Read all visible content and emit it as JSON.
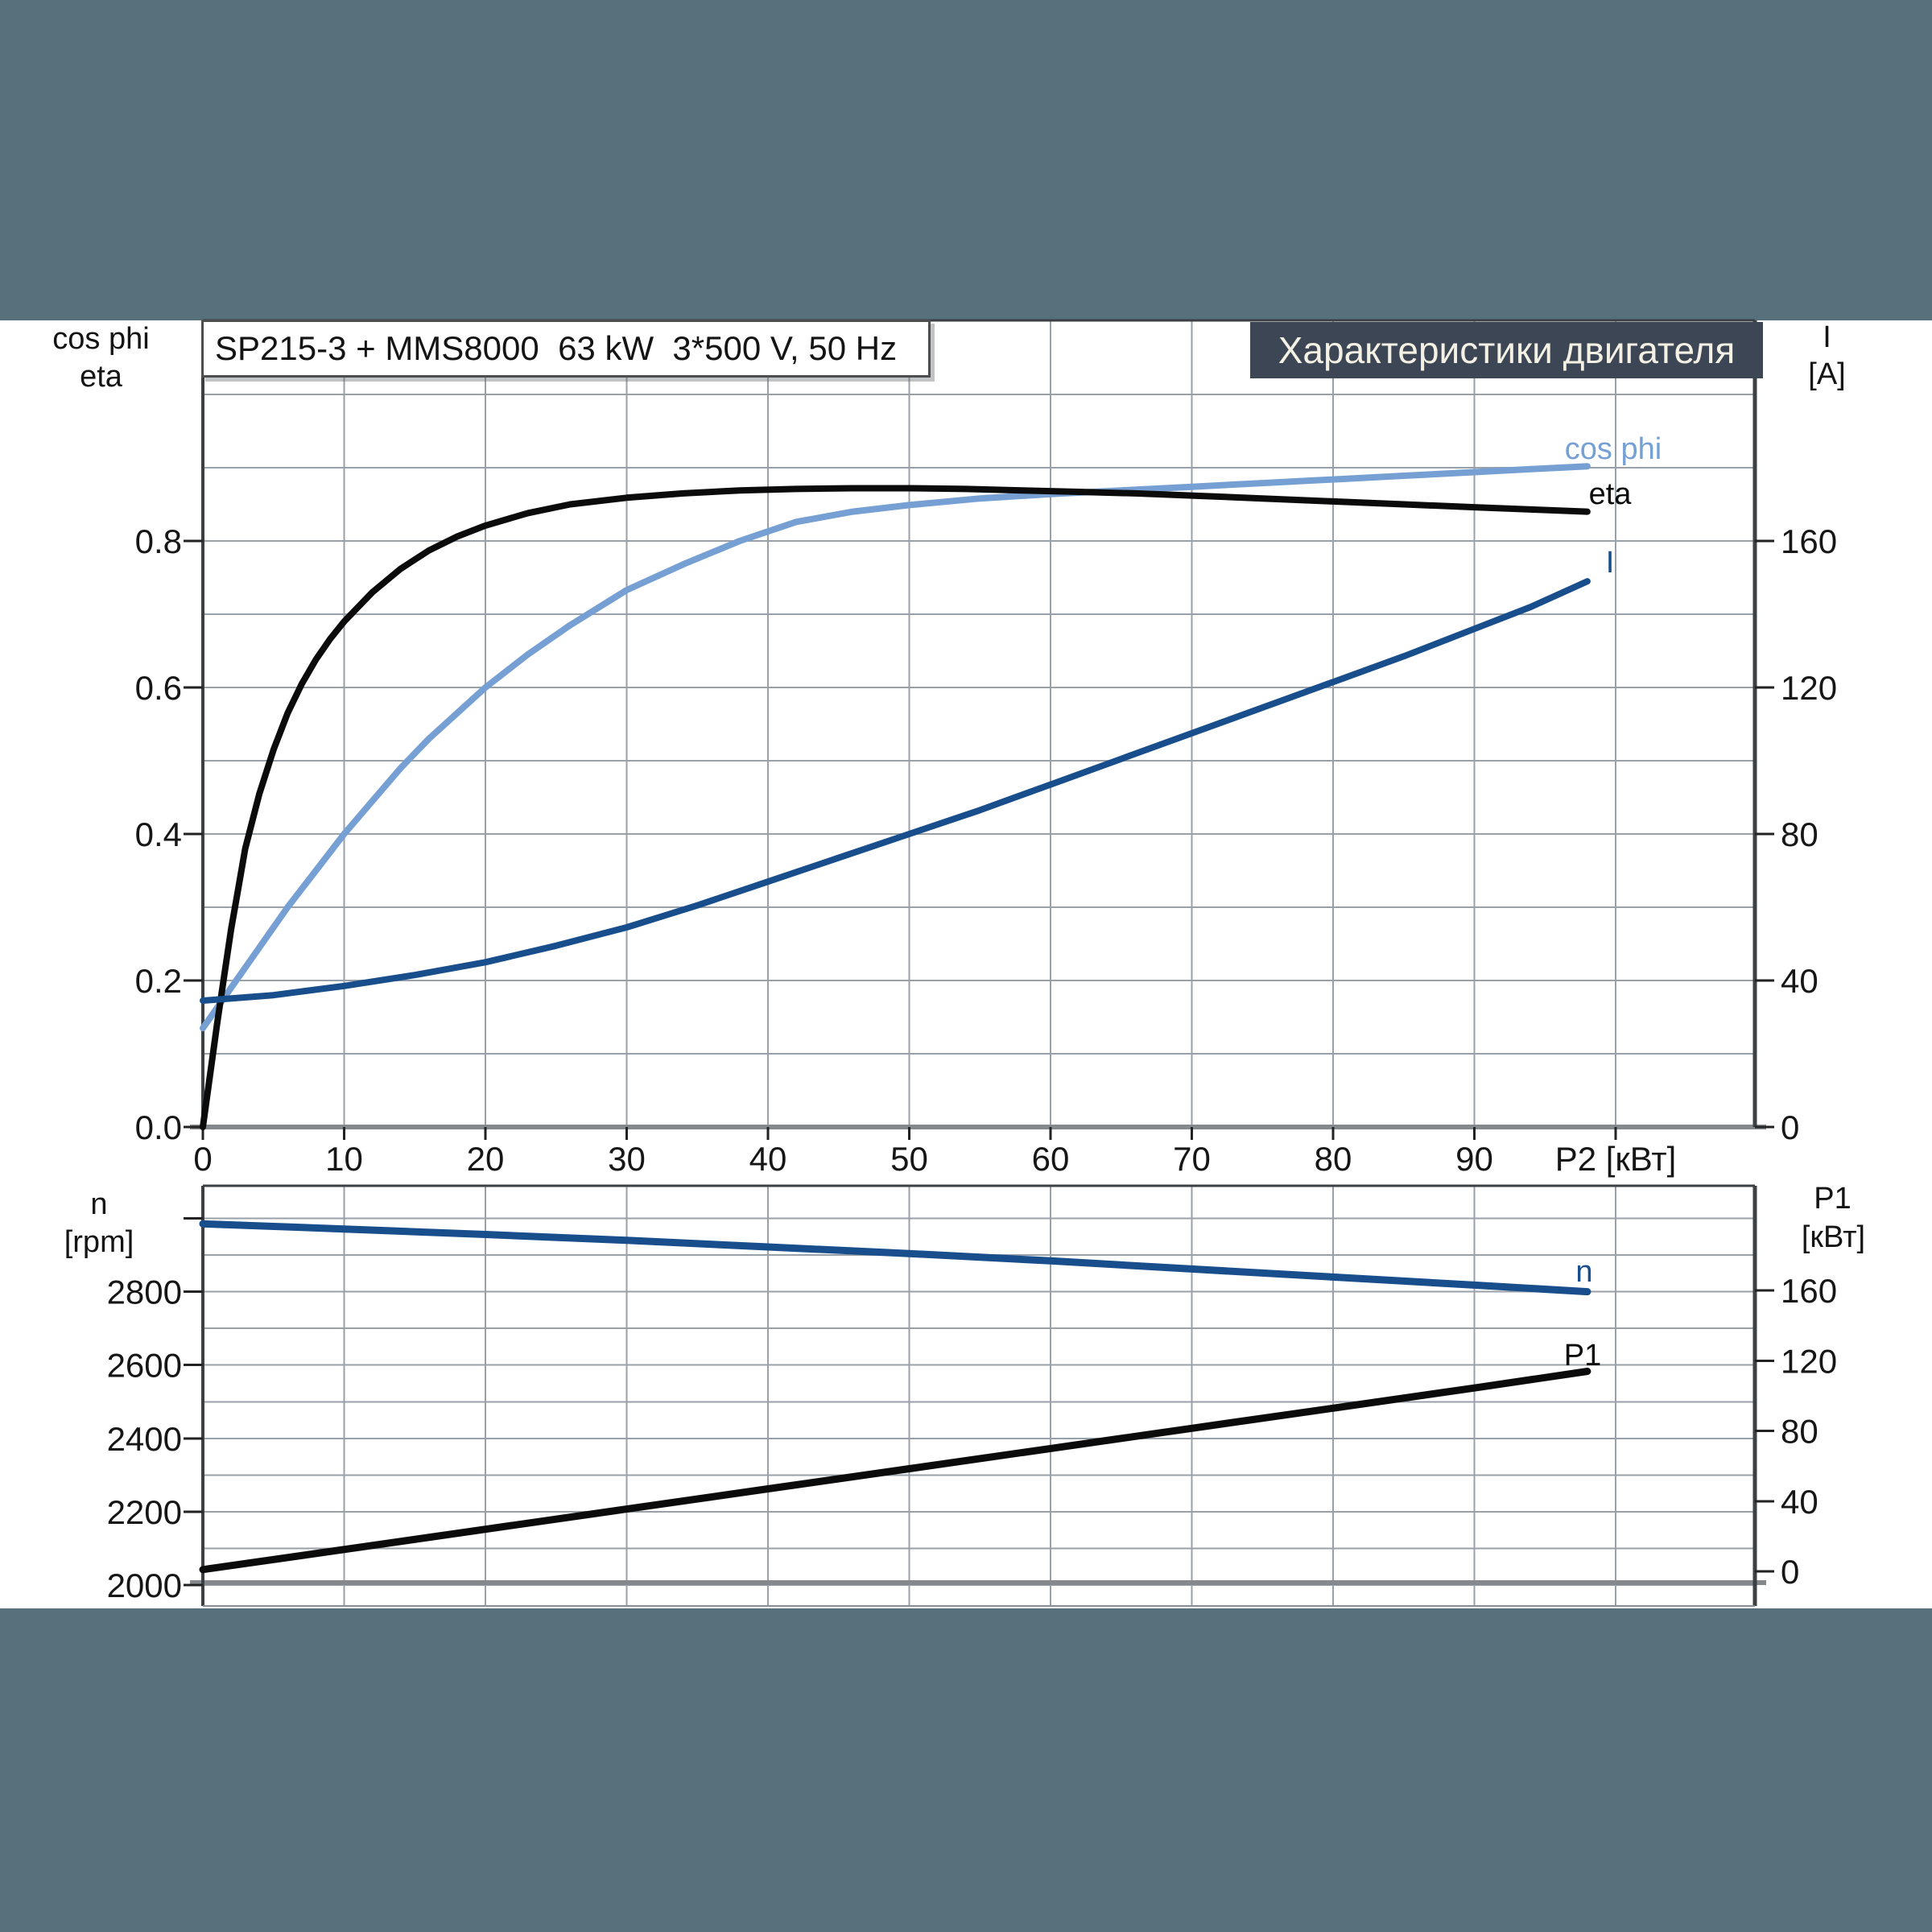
{
  "page": {
    "background": "#56707C",
    "panel_bg": "#FFFFFF"
  },
  "header": {
    "text": "Характеристики двигателя",
    "bg": "#3C4654",
    "color": "#F4F1E4"
  },
  "title_box": {
    "text": "SP215-3 + MMS8000  63 kW  3*500 V, 50 Hz"
  },
  "axis_corner_labels": {
    "top_left_1": "cos phi",
    "top_left_2": "eta",
    "top_right_1": "I",
    "top_right_2": "[A]",
    "bottom_left_1": "n",
    "bottom_left_2": "[rpm]",
    "bottom_right_1": "P1",
    "bottom_right_2": "[кВт]"
  },
  "colors": {
    "cos_phi": "#76A0D3",
    "eta": "#0B0B0B",
    "current": "#194E8C",
    "speed": "#194E8C",
    "p1": "#0B0B0B",
    "grid": "#9AA0A8",
    "frame": "#3B4045",
    "baseline": "#85898D",
    "tick_text": "#161616"
  },
  "chart_data": [
    {
      "type": "line",
      "title": "SP215-3 + MMS8000  63 kW  3*500 V, 50 Hz",
      "xlabel": "P2 [кВт]",
      "xlim": [
        0,
        109.9
      ],
      "x_tick_labels": [
        "0",
        "10",
        "20",
        "30",
        "40",
        "50",
        "60",
        "70",
        "80",
        "90"
      ],
      "x_tick_values": [
        0,
        10,
        20,
        30,
        40,
        50,
        60,
        70,
        80,
        90
      ],
      "x_label_at_tick": 100,
      "x_grid_step": 10,
      "grid": true,
      "legend_position": "end-of-curve",
      "y_left": {
        "tick_labels": [
          "0.0",
          "0.2",
          "0.4",
          "0.6",
          "0.8"
        ],
        "tick_values": [
          0,
          0.2,
          0.4,
          0.6,
          0.8
        ],
        "grid_step": 0.1,
        "lim": [
          0,
          1.1
        ]
      },
      "y_right": {
        "unit": "A",
        "tick_labels": [
          "0",
          "40",
          "80",
          "120",
          "160"
        ],
        "tick_values": [
          0,
          40,
          80,
          120,
          160
        ],
        "lim": [
          0,
          220
        ]
      },
      "series": [
        {
          "name": "cos phi",
          "axis": "left",
          "color": "#76A0D3",
          "points": [
            [
              0,
              0.135
            ],
            [
              2,
              0.19
            ],
            [
              4,
              0.245
            ],
            [
              6,
              0.3
            ],
            [
              8,
              0.35
            ],
            [
              10,
              0.4
            ],
            [
              12,
              0.445
            ],
            [
              14,
              0.49
            ],
            [
              16,
              0.53
            ],
            [
              18,
              0.565
            ],
            [
              20,
              0.6
            ],
            [
              23,
              0.645
            ],
            [
              26,
              0.685
            ],
            [
              30,
              0.733
            ],
            [
              34,
              0.768
            ],
            [
              38,
              0.8
            ],
            [
              42,
              0.826
            ],
            [
              46,
              0.84
            ],
            [
              50,
              0.849
            ],
            [
              55,
              0.858
            ],
            [
              60,
              0.864
            ],
            [
              65,
              0.869
            ],
            [
              70,
              0.874
            ],
            [
              75,
              0.879
            ],
            [
              80,
              0.884
            ],
            [
              85,
              0.889
            ],
            [
              90,
              0.894
            ],
            [
              94,
              0.898
            ],
            [
              98,
              0.902
            ]
          ]
        },
        {
          "name": "eta",
          "axis": "left",
          "color": "#0B0B0B",
          "points": [
            [
              0,
              0
            ],
            [
              0.5,
              0.07
            ],
            [
              1,
              0.14
            ],
            [
              1.5,
              0.205
            ],
            [
              2,
              0.27
            ],
            [
              2.5,
              0.325
            ],
            [
              3,
              0.38
            ],
            [
              4,
              0.455
            ],
            [
              5,
              0.515
            ],
            [
              6,
              0.565
            ],
            [
              7,
              0.605
            ],
            [
              8,
              0.638
            ],
            [
              9,
              0.666
            ],
            [
              10,
              0.69
            ],
            [
              12,
              0.73
            ],
            [
              14,
              0.762
            ],
            [
              16,
              0.787
            ],
            [
              18,
              0.806
            ],
            [
              20,
              0.821
            ],
            [
              23,
              0.838
            ],
            [
              26,
              0.85
            ],
            [
              30,
              0.859
            ],
            [
              34,
              0.865
            ],
            [
              38,
              0.869
            ],
            [
              42,
              0.871
            ],
            [
              46,
              0.872
            ],
            [
              50,
              0.872
            ],
            [
              54,
              0.871
            ],
            [
              58,
              0.869
            ],
            [
              62,
              0.867
            ],
            [
              66,
              0.865
            ],
            [
              70,
              0.862
            ],
            [
              75,
              0.858
            ],
            [
              80,
              0.854
            ],
            [
              85,
              0.85
            ],
            [
              90,
              0.846
            ],
            [
              94,
              0.843
            ],
            [
              98,
              0.84
            ]
          ]
        },
        {
          "name": "I",
          "axis": "right",
          "color": "#194E8C",
          "points": [
            [
              0,
              34.5
            ],
            [
              5,
              36
            ],
            [
              10,
              38.5
            ],
            [
              15,
              41.5
            ],
            [
              20,
              45
            ],
            [
              25,
              49.5
            ],
            [
              30,
              54.5
            ],
            [
              35,
              60.5
            ],
            [
              40,
              67
            ],
            [
              45,
              73.5
            ],
            [
              50,
              80
            ],
            [
              55,
              86.5
            ],
            [
              60,
              93.5
            ],
            [
              65,
              100.5
            ],
            [
              70,
              107.5
            ],
            [
              75,
              114.5
            ],
            [
              80,
              121.5
            ],
            [
              85,
              128.5
            ],
            [
              90,
              136
            ],
            [
              94,
              142
            ],
            [
              98,
              149
            ]
          ]
        }
      ]
    },
    {
      "type": "line",
      "title": "",
      "xlabel": "",
      "xlim": [
        0,
        109.9
      ],
      "x_tick_labels": [],
      "x_grid_step": 10,
      "grid": true,
      "legend_position": "end-of-curve",
      "y_left": {
        "unit": "rpm",
        "tick_labels": [
          "2000",
          "2200",
          "2400",
          "2600",
          "2800"
        ],
        "tick_values": [
          2000,
          2200,
          2400,
          2600,
          2800
        ],
        "extra_tick": 3000,
        "grid_step": 100,
        "lim": [
          1943,
          3089
        ]
      },
      "y_right": {
        "unit": "кВт",
        "tick_labels": [
          "0",
          "40",
          "80",
          "120",
          "160"
        ],
        "tick_values": [
          0,
          40,
          80,
          120,
          160
        ],
        "lim": [
          -20,
          220
        ]
      },
      "series": [
        {
          "name": "n",
          "axis": "left",
          "color": "#194E8C",
          "points": [
            [
              0,
              2985
            ],
            [
              10,
              2971
            ],
            [
              20,
              2956
            ],
            [
              30,
              2940
            ],
            [
              40,
              2922
            ],
            [
              50,
              2904
            ],
            [
              60,
              2884
            ],
            [
              70,
              2862
            ],
            [
              80,
              2840
            ],
            [
              90,
              2818
            ],
            [
              98,
              2800
            ]
          ]
        },
        {
          "name": "P1",
          "axis": "right",
          "color": "#0B0B0B",
          "points": [
            [
              0,
              1
            ],
            [
              10,
              12.5
            ],
            [
              20,
              24
            ],
            [
              30,
              35.5
            ],
            [
              40,
              47
            ],
            [
              50,
              58.5
            ],
            [
              60,
              70
            ],
            [
              70,
              81.5
            ],
            [
              80,
              93
            ],
            [
              90,
              104.5
            ],
            [
              98,
              114
            ]
          ]
        }
      ]
    }
  ]
}
